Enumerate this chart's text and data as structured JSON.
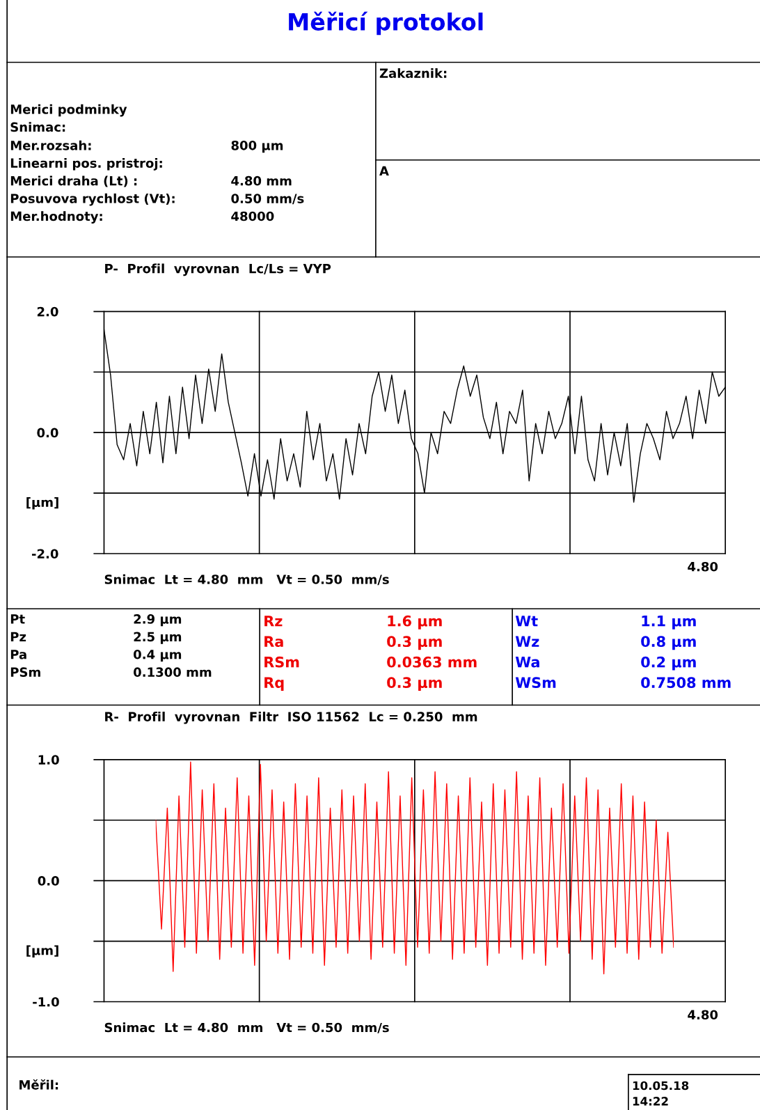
{
  "chart_data": [
    {
      "type": "line",
      "title": "P-  Profil  vyrovnan  Lc/Ls = VYP",
      "xlabel": "Snimac  Lt = 4.80  mm   Vt = 0.50  mm/s",
      "ylabel": "[µm]",
      "ylim": [
        -2,
        2
      ],
      "yticks": [
        {
          "value": -2,
          "label": "-2.0"
        },
        {
          "value": -1,
          "label": null
        },
        {
          "value": 0,
          "label": "0.0"
        },
        {
          "value": 1,
          "label": null
        },
        {
          "value": 2,
          "label": "2.0"
        }
      ],
      "grid": true,
      "categories": [
        null,
        null,
        null,
        null,
        null,
        null,
        null,
        null,
        null,
        null,
        null,
        null,
        null,
        null,
        null,
        null,
        null,
        null,
        null,
        null,
        null,
        null,
        null,
        null,
        null,
        null,
        null,
        null,
        null,
        null,
        null,
        null,
        null,
        null,
        null,
        null,
        null,
        null,
        null,
        null,
        null,
        null,
        null,
        null,
        null,
        null,
        null,
        null,
        null,
        null,
        null,
        null,
        null,
        null,
        null,
        null,
        null,
        null,
        null,
        null,
        null,
        null,
        null,
        null,
        null,
        null,
        null,
        null,
        null,
        null,
        null,
        null,
        null,
        null,
        null,
        null,
        null,
        null,
        null,
        null,
        null,
        null,
        null,
        null,
        null,
        null,
        null,
        null,
        null,
        null,
        null,
        null,
        null,
        null,
        null,
        null
      ],
      "series": [
        {
          "color": "#000000",
          "values": [
            1.7,
            0.95,
            -0.2,
            -0.45,
            0.15,
            -0.55,
            0.35,
            -0.35,
            0.5,
            -0.5,
            0.6,
            -0.35,
            0.75,
            -0.1,
            0.95,
            0.15,
            1.05,
            0.35,
            1.3,
            0.5,
            0.0,
            -0.5,
            -1.05,
            -0.35,
            -1.05,
            -0.45,
            -1.1,
            -0.1,
            -0.8,
            -0.35,
            -0.9,
            0.35,
            -0.45,
            0.15,
            -0.8,
            -0.35,
            -1.1,
            -0.1,
            -0.7,
            0.15,
            -0.35,
            0.6,
            1.0,
            0.35,
            0.95,
            0.15,
            0.7,
            -0.1,
            -0.35,
            -1.0,
            0.0,
            -0.35,
            0.35,
            0.15,
            0.7,
            1.1,
            0.6,
            0.95,
            0.25,
            -0.1,
            0.5,
            -0.35,
            0.35,
            0.15,
            0.7,
            -0.8,
            0.15,
            -0.35,
            0.35,
            -0.1,
            0.15,
            0.6,
            -0.35,
            0.6,
            -0.45,
            -0.8,
            0.15,
            -0.7,
            0.0,
            -0.55,
            0.15,
            -1.15,
            -0.35,
            0.15,
            -0.1,
            -0.45,
            0.35,
            -0.1,
            0.15,
            0.6,
            -0.1,
            0.7,
            0.15,
            1.0,
            0.6,
            0.75
          ]
        }
      ],
      "annotations": [
        "Měřicí protokol",
        "Merici podminky",
        "Snimac:",
        "Mer.rozsah:",
        "800 µm",
        "Linearni pos. pristroj:",
        "Merici draha (Lt) :",
        "4.80 mm",
        "Posuvova rychlost (Vt):",
        "0.50 mm/s",
        "Mer.hodnoty:",
        "48000",
        "Zakaznik:",
        "A",
        "4.80"
      ]
    },
    {
      "type": "line",
      "title": "R-  Profil  vyrovnan  Filtr  ISO 11562  Lc = 0.250  mm",
      "xlabel": "Snimac  Lt = 4.80  mm   Vt = 0.50  mm/s",
      "ylabel": "[µm]",
      "ylim": [
        -1,
        1
      ],
      "yticks": [
        {
          "value": -1,
          "label": "-1.0"
        },
        {
          "value": -0.5,
          "label": null
        },
        {
          "value": 0,
          "label": "0.0"
        },
        {
          "value": 0.5,
          "label": null
        },
        {
          "value": 1,
          "label": "1.0"
        }
      ],
      "grid": true,
      "categories": [
        null,
        null,
        null,
        null,
        null,
        null,
        null,
        null,
        null,
        null,
        null,
        null,
        null,
        null,
        null,
        null,
        null,
        null,
        null,
        null,
        null,
        null,
        null,
        null,
        null,
        null,
        null,
        null,
        null,
        null,
        null,
        null,
        null,
        null,
        null,
        null,
        null,
        null,
        null,
        null,
        null,
        null,
        null,
        null,
        null,
        null,
        null,
        null,
        null,
        null,
        null,
        null,
        null,
        null,
        null,
        null,
        null,
        null,
        null,
        null,
        null,
        null,
        null,
        null,
        null,
        null,
        null,
        null,
        null,
        null,
        null,
        null,
        null,
        null,
        null,
        null,
        null,
        null,
        null,
        null,
        null,
        null,
        null,
        null,
        null,
        null,
        null,
        null,
        null,
        null
      ],
      "series": [
        {
          "color": "#ff0000",
          "values": [
            0.5,
            -0.4,
            0.6,
            -0.75,
            0.7,
            -0.55,
            0.98,
            -0.6,
            0.75,
            -0.5,
            0.8,
            -0.65,
            0.6,
            -0.55,
            0.85,
            -0.6,
            0.7,
            -0.7,
            0.96,
            -0.5,
            0.75,
            -0.6,
            0.65,
            -0.65,
            0.8,
            -0.55,
            0.7,
            -0.6,
            0.85,
            -0.7,
            0.6,
            -0.55,
            0.75,
            -0.6,
            0.7,
            -0.5,
            0.8,
            -0.65,
            0.65,
            -0.55,
            0.9,
            -0.6,
            0.7,
            -0.7,
            0.85,
            -0.55,
            0.75,
            -0.6,
            0.9,
            -0.5,
            0.8,
            -0.65,
            0.7,
            -0.6,
            0.85,
            -0.55,
            0.65,
            -0.7,
            0.8,
            -0.6,
            0.75,
            -0.55,
            0.9,
            -0.65,
            0.7,
            -0.6,
            0.85,
            -0.7,
            0.6,
            -0.55,
            0.8,
            -0.6,
            0.7,
            -0.5,
            0.85,
            -0.65,
            0.75,
            -0.77,
            0.6,
            -0.55,
            0.8,
            -0.6,
            0.7,
            -0.65,
            0.65,
            -0.55,
            0.5,
            -0.6,
            0.4,
            -0.55
          ]
        }
      ],
      "annotations": [
        "Pt",
        "2.9 µm",
        "Pz",
        "2.5 µm",
        "Pa",
        "0.4 µm",
        "PSm",
        "0.1300 mm",
        "Rz",
        "1.6 µm",
        "Ra",
        "0.3 µm",
        "RSm",
        "0.0363 mm",
        "Rq",
        "0.3 µm",
        "Wt",
        "1.1 µm",
        "Wz",
        "0.8 µm",
        "Wa",
        "0.2 µm",
        "WSm",
        "0.7508 mm",
        "Měřil:",
        "10.05.18",
        "14:22",
        "4.80"
      ]
    }
  ]
}
